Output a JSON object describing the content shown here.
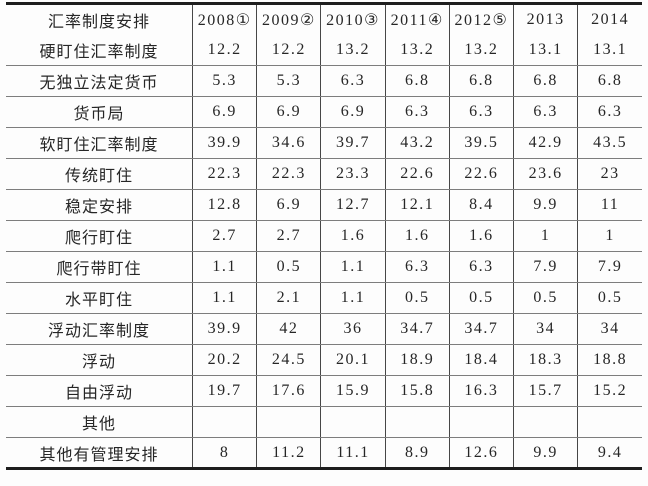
{
  "colors": {
    "page_background": "#fdfdfd",
    "heavy_rule": "#1e1e1e",
    "horizontal_rule": "#7d7d7d",
    "vertical_rule": "#474747",
    "text": "#262626"
  },
  "chart_data": {
    "type": "table",
    "title": "汇率制度安排",
    "columns": [
      "汇率制度安排",
      "2008①",
      "2009②",
      "2010③",
      "2011④",
      "2012⑤",
      "2013",
      "2014"
    ],
    "rows": [
      {
        "label": "硬盯住汇率制度",
        "values": [
          "12.2",
          "12.2",
          "13.2",
          "13.2",
          "13.2",
          "13.1",
          "13.1"
        ]
      },
      {
        "label": "无独立法定货币",
        "values": [
          "5.3",
          "5.3",
          "6.3",
          "6.8",
          "6.8",
          "6.8",
          "6.8"
        ]
      },
      {
        "label": "货币局",
        "values": [
          "6.9",
          "6.9",
          "6.9",
          "6.3",
          "6.3",
          "6.3",
          "6.3"
        ]
      },
      {
        "label": "软盯住汇率制度",
        "values": [
          "39.9",
          "34.6",
          "39.7",
          "43.2",
          "39.5",
          "42.9",
          "43.5"
        ]
      },
      {
        "label": "传统盯住",
        "values": [
          "22.3",
          "22.3",
          "23.3",
          "22.6",
          "22.6",
          "23.6",
          "23"
        ]
      },
      {
        "label": "稳定安排",
        "values": [
          "12.8",
          "6.9",
          "12.7",
          "12.1",
          "8.4",
          "9.9",
          "11"
        ]
      },
      {
        "label": "爬行盯住",
        "values": [
          "2.7",
          "2.7",
          "1.6",
          "1.6",
          "1.6",
          "1",
          "1"
        ]
      },
      {
        "label": "爬行带盯住",
        "values": [
          "1.1",
          "0.5",
          "1.1",
          "6.3",
          "6.3",
          "7.9",
          "7.9"
        ]
      },
      {
        "label": "水平盯住",
        "values": [
          "1.1",
          "2.1",
          "1.1",
          "0.5",
          "0.5",
          "0.5",
          "0.5"
        ]
      },
      {
        "label": "浮动汇率制度",
        "values": [
          "39.9",
          "42",
          "36",
          "34.7",
          "34.7",
          "34",
          "34"
        ]
      },
      {
        "label": "浮动",
        "values": [
          "20.2",
          "24.5",
          "20.1",
          "18.9",
          "18.4",
          "18.3",
          "18.8"
        ]
      },
      {
        "label": "自由浮动",
        "values": [
          "19.7",
          "17.6",
          "15.9",
          "15.8",
          "16.3",
          "15.7",
          "15.2"
        ]
      },
      {
        "label": "其他",
        "values": [
          "",
          "",
          "",
          "",
          "",
          "",
          ""
        ]
      },
      {
        "label": "其他有管理安排",
        "values": [
          "8",
          "11.2",
          "11.1",
          "8.9",
          "12.6",
          "9.9",
          "9.4"
        ]
      }
    ]
  }
}
